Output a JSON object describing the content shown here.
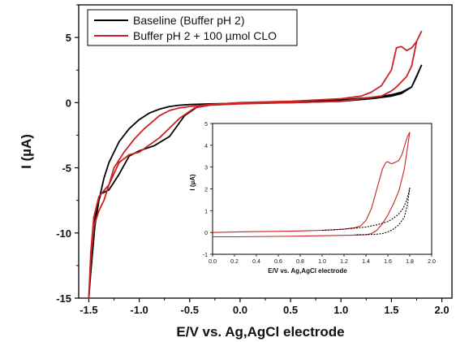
{
  "chart_data": [
    {
      "type": "line",
      "xlabel": "E/V vs. Ag,AgCl electrode",
      "ylabel": "I (µA)",
      "xlim": [
        -1.6,
        2.1
      ],
      "ylim": [
        -15,
        7.5
      ],
      "xticks": [
        -1.5,
        -1.0,
        -0.5,
        0.0,
        0.5,
        1.0,
        1.5,
        2.0
      ],
      "xtick_labels": [
        "-1.5",
        "-1.0",
        "-0.5",
        "0.0",
        "0.5",
        "1.0",
        "1.5",
        "2.0"
      ],
      "yticks": [
        -15,
        -10,
        -5,
        0,
        5
      ],
      "ytick_labels": [
        "-15",
        "-10",
        "-5",
        "0",
        "5"
      ],
      "legend_position": "top-left",
      "series": [
        {
          "name": "Baseline (Buffer pH 2)",
          "color": "#000000",
          "x": [
            1.8,
            1.7,
            1.6,
            1.5,
            1.3,
            1.0,
            0.5,
            0.0,
            -0.4,
            -0.55,
            -0.7,
            -0.85,
            -1.0,
            -1.1,
            -1.2,
            -1.3,
            -1.38,
            -1.42,
            -1.46,
            -1.48,
            -1.5,
            -1.48,
            -1.44,
            -1.4,
            -1.35,
            -1.3,
            -1.2,
            -1.1,
            -1.0,
            -0.9,
            -0.8,
            -0.7,
            -0.6,
            -0.5,
            -0.3,
            0.0,
            0.5,
            1.0,
            1.3,
            1.5,
            1.6,
            1.7,
            1.75,
            1.8
          ],
          "y": [
            2.9,
            1.2,
            0.8,
            0.6,
            0.4,
            0.2,
            0.05,
            -0.05,
            -0.2,
            -1.0,
            -2.6,
            -3.3,
            -3.7,
            -4.1,
            -5.5,
            -6.7,
            -7.0,
            -8.0,
            -10.0,
            -12.5,
            -15.0,
            -13.0,
            -9.5,
            -7.5,
            -5.8,
            -4.6,
            -3.0,
            -2.0,
            -1.3,
            -0.8,
            -0.5,
            -0.3,
            -0.2,
            -0.15,
            -0.1,
            -0.05,
            0.0,
            0.1,
            0.3,
            0.5,
            0.7,
            1.2,
            2.0,
            2.9
          ]
        },
        {
          "name": "Buffer pH 2 + 100 µmol CLO",
          "color": "#cc2222",
          "x": [
            1.8,
            1.75,
            1.7,
            1.65,
            1.6,
            1.55,
            1.5,
            1.4,
            1.2,
            1.0,
            0.5,
            0.0,
            -0.3,
            -0.45,
            -0.6,
            -0.8,
            -1.0,
            -1.1,
            -1.2,
            -1.3,
            -1.4,
            -1.45,
            -1.48,
            -1.5,
            -1.48,
            -1.45,
            -1.4,
            -1.35,
            -1.3,
            -1.25,
            -1.15,
            -1.05,
            -0.95,
            -0.8,
            -0.7,
            -0.6,
            -0.5,
            -0.3,
            0.0,
            0.5,
            1.0,
            1.2,
            1.3,
            1.4,
            1.5,
            1.55,
            1.6,
            1.65,
            1.7,
            1.75,
            1.8
          ],
          "y": [
            5.5,
            4.7,
            2.8,
            2.0,
            1.6,
            1.2,
            0.9,
            0.5,
            0.3,
            0.1,
            0.0,
            -0.1,
            -0.2,
            -0.4,
            -1.2,
            -2.7,
            -3.8,
            -4.0,
            -4.6,
            -6.3,
            -7.2,
            -8.8,
            -11.5,
            -15.0,
            -12.0,
            -9.5,
            -8.3,
            -7.5,
            -6.3,
            -5.0,
            -3.8,
            -2.8,
            -2.0,
            -1.0,
            -0.6,
            -0.4,
            -0.3,
            -0.15,
            0.0,
            0.1,
            0.3,
            0.5,
            0.8,
            1.3,
            2.5,
            4.2,
            4.3,
            4.0,
            4.2,
            4.7,
            5.5
          ]
        }
      ]
    },
    {
      "type": "line",
      "xlabel": "E/V vs. Ag,AgCl electrode",
      "ylabel": "I (µA)",
      "xlim": [
        0.0,
        2.0
      ],
      "ylim": [
        -1,
        5
      ],
      "xticks": [
        0.0,
        0.2,
        0.4,
        0.6,
        0.8,
        1.0,
        1.2,
        1.4,
        1.6,
        1.8,
        2.0
      ],
      "xtick_labels": [
        "0.0",
        "0.2",
        "0.4",
        "0.6",
        "0.8",
        "1.0",
        "1.2",
        "1.4",
        "1.6",
        "1.8",
        "2.0"
      ],
      "yticks": [
        -1,
        0,
        1,
        2,
        3,
        4,
        5
      ],
      "ytick_labels": [
        "-1",
        "0",
        "1",
        "2",
        "3",
        "4",
        "5"
      ],
      "series": [
        {
          "color": "#cc2222",
          "style": "solid",
          "x": [
            0.0,
            0.2,
            0.4,
            0.6,
            0.8,
            1.0,
            1.1,
            1.2,
            1.3,
            1.35,
            1.4,
            1.45,
            1.5,
            1.55,
            1.58,
            1.6,
            1.63,
            1.66,
            1.7,
            1.73,
            1.76,
            1.78,
            1.8
          ],
          "y": [
            0.0,
            0.02,
            0.04,
            0.05,
            0.07,
            0.1,
            0.12,
            0.15,
            0.22,
            0.3,
            0.55,
            1.1,
            2.0,
            2.9,
            3.2,
            3.25,
            3.15,
            3.2,
            3.3,
            3.6,
            4.1,
            4.4,
            4.6
          ]
        },
        {
          "color": "#cc2222",
          "style": "solid",
          "x": [
            1.8,
            1.75,
            1.7,
            1.65,
            1.6,
            1.55,
            1.5,
            1.45,
            1.4,
            1.3,
            1.0,
            0.6,
            0.2,
            0.0
          ],
          "y": [
            4.6,
            2.9,
            1.9,
            1.3,
            0.8,
            0.4,
            0.1,
            -0.05,
            -0.1,
            -0.12,
            -0.15,
            -0.18,
            -0.2,
            -0.2
          ]
        },
        {
          "color": "#000000",
          "style": "dashed",
          "x": [
            1.0,
            1.2,
            1.4,
            1.5,
            1.6,
            1.65,
            1.7,
            1.74,
            1.77,
            1.79,
            1.8
          ],
          "y": [
            0.1,
            0.15,
            0.25,
            0.35,
            0.5,
            0.65,
            0.85,
            1.1,
            1.45,
            1.8,
            2.05
          ]
        },
        {
          "color": "#000000",
          "style": "dashed",
          "x": [
            1.8,
            1.78,
            1.75,
            1.7,
            1.65,
            1.6,
            1.55,
            1.5,
            1.4,
            1.3
          ],
          "y": [
            2.05,
            1.3,
            0.7,
            0.35,
            0.15,
            0.02,
            -0.05,
            -0.08,
            -0.1,
            -0.1
          ]
        }
      ]
    }
  ]
}
